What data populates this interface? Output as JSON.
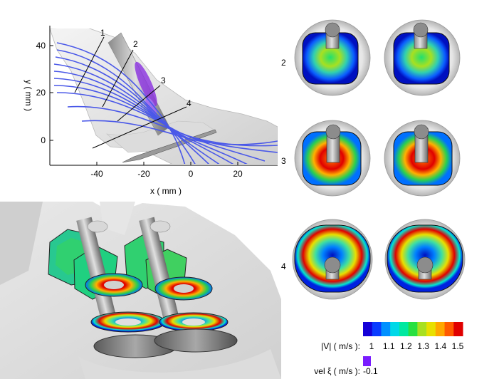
{
  "plot": {
    "xlabel": "x ( mm )",
    "ylabel": "y ( mm )",
    "xticks": [
      "-40",
      "-20",
      "0",
      "20"
    ],
    "yticks": [
      "40",
      "20",
      "0"
    ],
    "section_labels": [
      "1",
      "2",
      "3",
      "4"
    ]
  },
  "rows": [
    {
      "label": "2"
    },
    {
      "label": "3"
    },
    {
      "label": "4"
    }
  ],
  "colorbar": {
    "label": "|V| ( m/s ):",
    "ticks": [
      "1",
      "1.1",
      "1.2",
      "1.3",
      "1.4",
      "1.5"
    ],
    "colors": [
      "#1400d8",
      "#0a3cff",
      "#0090ff",
      "#00d8e8",
      "#00e8a0",
      "#28e040",
      "#a8e020",
      "#e8e000",
      "#ffa800",
      "#ff5a00",
      "#e00000"
    ]
  },
  "vel": {
    "label": "vel ξ ( m/s ):",
    "value": "-0.1",
    "color": "#7a1cff"
  },
  "icons": [
    "valve-stem-icon"
  ]
}
